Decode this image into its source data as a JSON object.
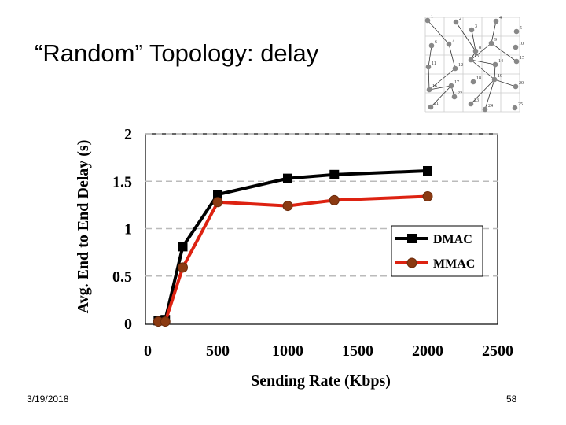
{
  "slide": {
    "title": "“Random” Topology: delay",
    "date": "3/19/2018",
    "page_number": "58"
  },
  "chart_data": {
    "type": "line",
    "title": "",
    "xlabel": "Sending Rate (Kbps)",
    "ylabel": "Avg. End to End Delay (s)",
    "xlim": [
      0,
      2500
    ],
    "ylim": [
      0,
      2
    ],
    "xticks": [
      "0",
      "500",
      "1000",
      "1500",
      "2000",
      "2500"
    ],
    "yticks": [
      "0",
      "0.5",
      "1",
      "1.5",
      "2"
    ],
    "grid": "horizontal dashed",
    "legend_position": "right",
    "series": [
      {
        "name": "DMAC",
        "color": "#000000",
        "marker": "square",
        "x": [
          75,
          125,
          250,
          500,
          1000,
          1333,
          2000
        ],
        "y": [
          0.03,
          0.04,
          0.81,
          1.36,
          1.53,
          1.57,
          1.61
        ]
      },
      {
        "name": "MMAC",
        "color": "#dd2211",
        "marker": "circle",
        "x": [
          75,
          125,
          250,
          500,
          1000,
          1333,
          2000
        ],
        "y": [
          0.02,
          0.02,
          0.59,
          1.28,
          1.24,
          1.3,
          1.34
        ]
      }
    ]
  },
  "topology": {
    "node_labels": [
      "1",
      "2",
      "3",
      "4",
      "5",
      "6",
      "7",
      "8",
      "9",
      "10",
      "11",
      "12",
      "13",
      "14",
      "15",
      "16",
      "17",
      "18",
      "19",
      "20",
      "21",
      "22",
      "23",
      "24",
      "25"
    ]
  },
  "colors": {
    "dmac": "#000000",
    "mmac": "#dd2211",
    "mmac_marker": "#8b3a12",
    "node": "#888888",
    "grid": "#bbbbbb"
  }
}
